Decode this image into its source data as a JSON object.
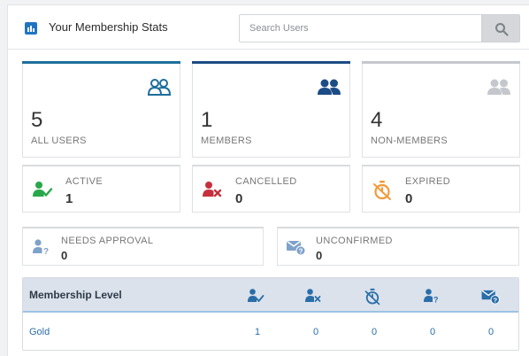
{
  "header": {
    "title": "Your Membership Stats",
    "search_placeholder": "Search Users"
  },
  "colors": {
    "accent_blue": "#1f74c2",
    "teal": "#1e6f9b",
    "navy": "#1c4c86",
    "grey": "#c4c8cc",
    "green": "#28a84a",
    "red": "#c6303c",
    "orange": "#f29a3a"
  },
  "totals": [
    {
      "value": "5",
      "label": "ALL USERS",
      "icon": "users-outline-icon"
    },
    {
      "value": "1",
      "label": "MEMBERS",
      "icon": "users-filled-icon"
    },
    {
      "value": "4",
      "label": "NON-MEMBERS",
      "icon": "users-grey-icon"
    }
  ],
  "statuses": [
    {
      "label": "ACTIVE",
      "value": "1",
      "icon": "user-check-icon"
    },
    {
      "label": "CANCELLED",
      "value": "0",
      "icon": "user-x-icon"
    },
    {
      "label": "EXPIRED",
      "value": "0",
      "icon": "stopwatch-off-icon"
    }
  ],
  "pending": [
    {
      "label": "NEEDS APPROVAL",
      "value": "0",
      "icon": "user-question-icon"
    },
    {
      "label": "UNCONFIRMED",
      "value": "0",
      "icon": "mail-question-icon"
    }
  ],
  "table": {
    "header": "Membership Level",
    "columns": [
      "user-check-icon",
      "user-x-icon",
      "stopwatch-off-icon",
      "user-question-icon",
      "mail-question-icon"
    ],
    "rows": [
      {
        "level": "Gold",
        "active": "1",
        "cancelled": "0",
        "expired": "0",
        "needs_approval": "0",
        "unconfirmed": "0"
      }
    ]
  }
}
